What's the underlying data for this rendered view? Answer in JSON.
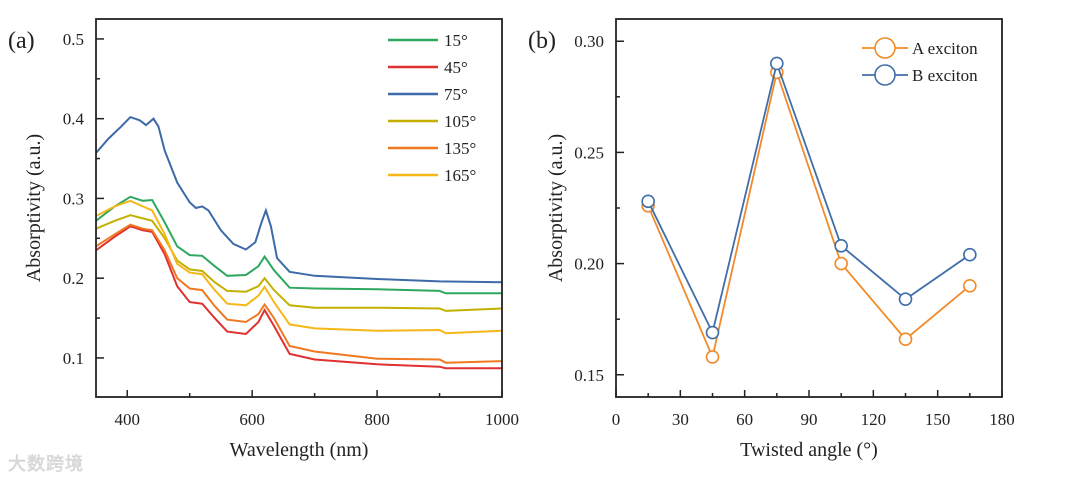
{
  "watermark": "大数跨境",
  "chart_data": [
    {
      "panel_label": "(a)",
      "type": "line",
      "xlabel": "Wavelength (nm)",
      "ylabel": "Absorptivity (a.u.)",
      "xlim": [
        350,
        1000
      ],
      "ylim": [
        0.051,
        0.525
      ],
      "xticks": [
        400,
        600,
        800,
        1000
      ],
      "xtick_labels": [
        "400",
        "600",
        "800",
        "1000"
      ],
      "yticks": [
        0.1,
        0.2,
        0.3,
        0.4,
        0.5
      ],
      "ytick_labels": [
        "0.1",
        "0.2",
        "0.3",
        "0.4",
        "0.5"
      ],
      "legend_position": "top-right",
      "series": [
        {
          "name": "15°",
          "color": "#2ea860",
          "x": [
            350,
            380,
            405,
            425,
            440,
            460,
            480,
            500,
            520,
            540,
            560,
            590,
            610,
            620,
            635,
            660,
            700,
            800,
            900,
            910,
            1000
          ],
          "y": [
            0.272,
            0.29,
            0.302,
            0.297,
            0.298,
            0.27,
            0.24,
            0.229,
            0.228,
            0.215,
            0.203,
            0.204,
            0.215,
            0.227,
            0.21,
            0.188,
            0.187,
            0.186,
            0.184,
            0.181,
            0.181
          ]
        },
        {
          "name": "45°",
          "color": "#e03030",
          "x": [
            350,
            380,
            405,
            425,
            440,
            460,
            480,
            500,
            520,
            540,
            560,
            590,
            610,
            620,
            635,
            660,
            700,
            800,
            900,
            910,
            1000
          ],
          "y": [
            0.235,
            0.252,
            0.265,
            0.26,
            0.258,
            0.23,
            0.19,
            0.17,
            0.168,
            0.15,
            0.133,
            0.13,
            0.145,
            0.16,
            0.14,
            0.105,
            0.098,
            0.092,
            0.089,
            0.087,
            0.087
          ]
        },
        {
          "name": "75°",
          "color": "#3d6aa8",
          "x": [
            350,
            370,
            390,
            405,
            420,
            430,
            442,
            450,
            460,
            480,
            500,
            510,
            520,
            530,
            550,
            570,
            590,
            605,
            615,
            622,
            630,
            640,
            660,
            700,
            800,
            900,
            1000
          ],
          "y": [
            0.357,
            0.375,
            0.39,
            0.402,
            0.398,
            0.392,
            0.4,
            0.39,
            0.36,
            0.32,
            0.295,
            0.288,
            0.29,
            0.285,
            0.26,
            0.243,
            0.236,
            0.245,
            0.27,
            0.285,
            0.265,
            0.225,
            0.208,
            0.203,
            0.199,
            0.196,
            0.195
          ]
        },
        {
          "name": "105°",
          "color": "#c4b000",
          "x": [
            350,
            380,
            405,
            425,
            440,
            460,
            480,
            500,
            520,
            540,
            560,
            590,
            610,
            620,
            635,
            660,
            700,
            800,
            900,
            910,
            1000
          ],
          "y": [
            0.262,
            0.272,
            0.279,
            0.275,
            0.272,
            0.25,
            0.222,
            0.211,
            0.209,
            0.195,
            0.184,
            0.183,
            0.19,
            0.2,
            0.185,
            0.166,
            0.163,
            0.163,
            0.162,
            0.159,
            0.162
          ]
        },
        {
          "name": "135°",
          "color": "#f07820",
          "x": [
            350,
            380,
            405,
            425,
            440,
            460,
            480,
            500,
            520,
            540,
            560,
            590,
            610,
            620,
            635,
            660,
            700,
            800,
            900,
            910,
            1000
          ],
          "y": [
            0.24,
            0.255,
            0.267,
            0.262,
            0.26,
            0.235,
            0.2,
            0.187,
            0.185,
            0.165,
            0.148,
            0.145,
            0.155,
            0.167,
            0.15,
            0.115,
            0.108,
            0.099,
            0.098,
            0.094,
            0.096
          ]
        },
        {
          "name": "165°",
          "color": "#f5b818",
          "x": [
            350,
            380,
            405,
            425,
            440,
            460,
            480,
            500,
            520,
            540,
            560,
            590,
            610,
            620,
            635,
            660,
            700,
            800,
            900,
            910,
            1000
          ],
          "y": [
            0.278,
            0.29,
            0.297,
            0.29,
            0.285,
            0.255,
            0.218,
            0.207,
            0.205,
            0.185,
            0.168,
            0.166,
            0.178,
            0.189,
            0.17,
            0.142,
            0.137,
            0.134,
            0.135,
            0.131,
            0.134
          ]
        }
      ]
    },
    {
      "panel_label": "(b)",
      "type": "line",
      "xlabel": "Twisted angle (°)",
      "ylabel": "Absorptivity (a.u.)",
      "xlim": [
        0,
        180
      ],
      "ylim": [
        0.14,
        0.31
      ],
      "xticks": [
        0,
        30,
        60,
        90,
        120,
        150,
        180
      ],
      "xtick_labels": [
        "0",
        "30",
        "60",
        "90",
        "120",
        "150",
        "180"
      ],
      "yticks": [
        0.15,
        0.2,
        0.25,
        0.3
      ],
      "ytick_labels": [
        "0.15",
        "0.20",
        "0.25",
        "0.30"
      ],
      "legend_position": "top-right",
      "series": [
        {
          "name": "A exciton",
          "color": "#f28a2a",
          "x": [
            15,
            45,
            75,
            105,
            135,
            165
          ],
          "y": [
            0.226,
            0.158,
            0.286,
            0.2,
            0.166,
            0.19
          ]
        },
        {
          "name": "B exciton",
          "color": "#3f6ea8",
          "x": [
            15,
            45,
            75,
            105,
            135,
            165
          ],
          "y": [
            0.228,
            0.169,
            0.29,
            0.208,
            0.184,
            0.204
          ]
        }
      ]
    }
  ]
}
